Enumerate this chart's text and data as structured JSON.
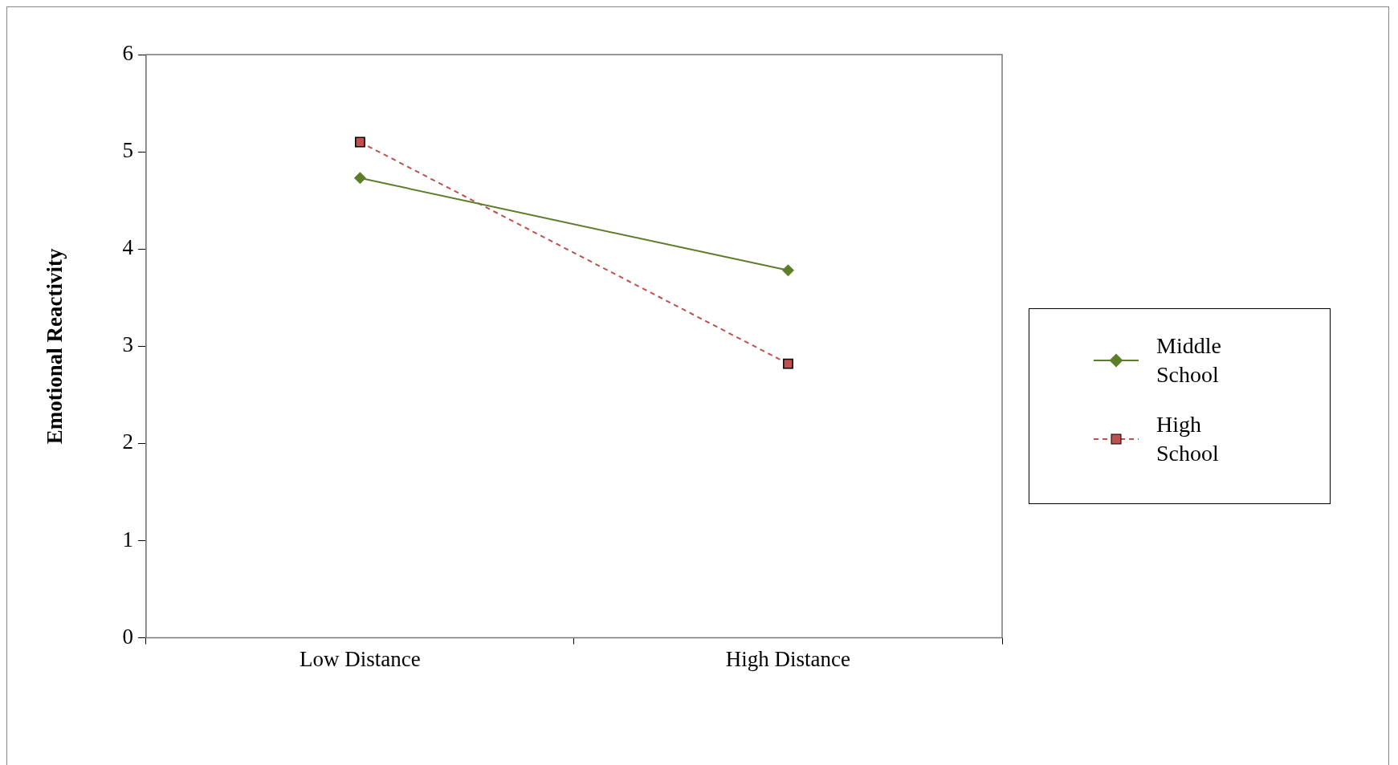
{
  "chart_data": {
    "type": "line",
    "ylabel": "Emotional Reactivity",
    "categories": [
      "Low Distance",
      "High Distance"
    ],
    "series": [
      {
        "name": "Middle School",
        "color": "#5e7d2b",
        "values": [
          4.73,
          3.78
        ],
        "marker": "diamond",
        "line_style": "solid"
      },
      {
        "name": "High School",
        "color": "#c0504d",
        "values": [
          5.1,
          2.82
        ],
        "marker": "square",
        "line_style": "dashed"
      }
    ],
    "ylim": [
      0,
      6
    ],
    "yticks": [
      0,
      1,
      2,
      3,
      4,
      5,
      6
    ],
    "grid": false,
    "legend": "right"
  }
}
